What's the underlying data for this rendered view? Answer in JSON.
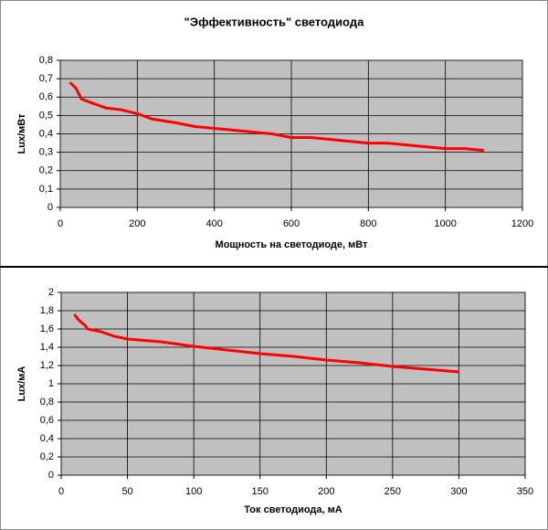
{
  "chart_data": [
    {
      "type": "line",
      "title": "\"Эффективность\" светодиода",
      "x_label": "Мощность на светодиоде,  мВт",
      "y_label": "Lux/мВт",
      "x": [
        25,
        40,
        55,
        80,
        120,
        160,
        200,
        240,
        300,
        350,
        400,
        450,
        500,
        550,
        600,
        650,
        700,
        750,
        800,
        850,
        900,
        950,
        1000,
        1050,
        1100
      ],
      "values": [
        0.68,
        0.65,
        0.59,
        0.57,
        0.54,
        0.53,
        0.51,
        0.48,
        0.46,
        0.44,
        0.43,
        0.42,
        0.41,
        0.4,
        0.38,
        0.38,
        0.37,
        0.36,
        0.35,
        0.35,
        0.34,
        0.33,
        0.32,
        0.32,
        0.31
      ],
      "color": "#ff0000",
      "xlim": [
        0,
        1200
      ],
      "xticks": [
        0,
        200,
        400,
        600,
        800,
        1000,
        1200
      ],
      "ylim": [
        0,
        0.8
      ],
      "yticks": [
        0,
        {
          "value": 0.1,
          "label": "0,1"
        },
        {
          "value": 0.2,
          "label": "0,2"
        },
        {
          "value": 0.3,
          "label": "0,3"
        },
        {
          "value": 0.4,
          "label": "0,4"
        },
        {
          "value": 0.5,
          "label": "0,5"
        },
        {
          "value": 0.6,
          "label": "0,6"
        },
        {
          "value": 0.7,
          "label": "0,7"
        },
        {
          "value": 0.8,
          "label": "0,8"
        }
      ],
      "grid": true
    },
    {
      "type": "line",
      "x_label": "Ток светодиода, мА",
      "y_label": "Lux/мА",
      "x": [
        10,
        13,
        18,
        20,
        30,
        40,
        50,
        75,
        100,
        125,
        150,
        175,
        200,
        225,
        250,
        275,
        300
      ],
      "values": [
        1.76,
        1.7,
        1.64,
        1.6,
        1.57,
        1.52,
        1.49,
        1.46,
        1.41,
        1.37,
        1.33,
        1.3,
        1.26,
        1.23,
        1.19,
        1.16,
        1.13
      ],
      "color": "#ff0000",
      "xlim": [
        0,
        350
      ],
      "xticks": [
        0,
        50,
        100,
        150,
        200,
        250,
        300,
        350
      ],
      "ylim": [
        0,
        2
      ],
      "yticks": [
        0,
        {
          "value": 0.2,
          "label": "0,2"
        },
        {
          "value": 0.4,
          "label": "0,4"
        },
        {
          "value": 0.6,
          "label": "0,6"
        },
        {
          "value": 0.8,
          "label": "0,8"
        },
        1,
        {
          "value": 1.2,
          "label": "1,2"
        },
        {
          "value": 1.4,
          "label": "1,4"
        },
        {
          "value": 1.6,
          "label": "1,6"
        },
        {
          "value": 1.8,
          "label": "1,8"
        },
        2
      ],
      "grid": true
    }
  ]
}
